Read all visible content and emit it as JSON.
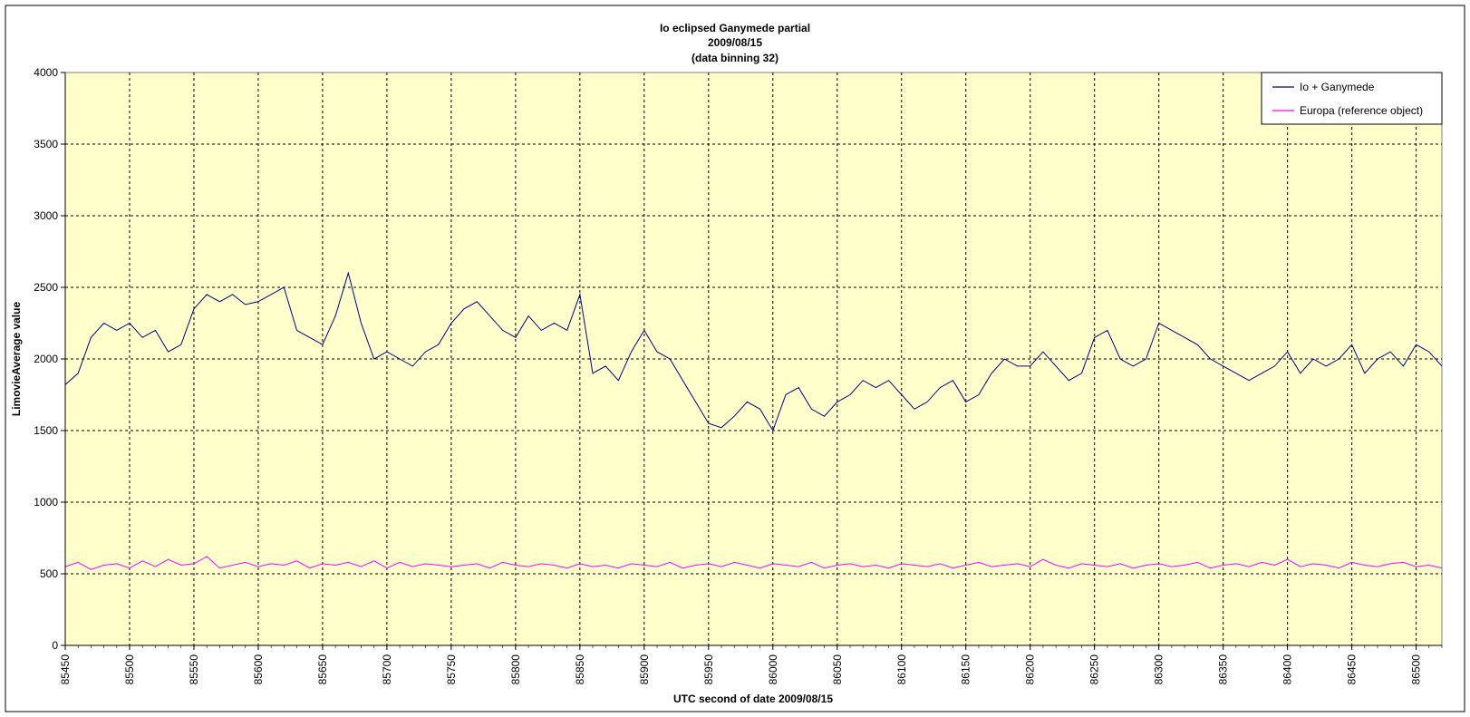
{
  "chart_data": {
    "type": "line",
    "title": [
      "Io eclipsed Ganymede partial",
      "2009/08/15",
      "(data binning 32)"
    ],
    "xlabel": "UTC second  of date 2009/08/15",
    "ylabel": "LimovieAverage value",
    "xlim": [
      85450,
      86520
    ],
    "ylim": [
      0,
      4000
    ],
    "x_ticks": [
      85450,
      85500,
      85550,
      85600,
      85650,
      85700,
      85750,
      85800,
      85850,
      85900,
      85950,
      86000,
      86050,
      86100,
      86150,
      86200,
      86250,
      86300,
      86350,
      86400,
      86450,
      86500
    ],
    "y_ticks": [
      0,
      500,
      1000,
      1500,
      2000,
      2500,
      3000,
      3500,
      4000
    ],
    "x_tick_labels": [
      "85450",
      "85500",
      "85550",
      "85600",
      "85650",
      "85700",
      "85750",
      "85800",
      "85850",
      "85900",
      "85950",
      "86000",
      "86050",
      "86100",
      "86150",
      "86200",
      "86250",
      "86300",
      "86350",
      "86400",
      "86450",
      "86500"
    ],
    "y_tick_labels": [
      "0",
      "500",
      "1000",
      "1500",
      "2000",
      "2500",
      "3000",
      "3500",
      "4000"
    ],
    "grid": true,
    "legend_position": "top-right",
    "background_color": "#FFFFCC",
    "series": [
      {
        "name": "Io + Ganymede",
        "color": "#000080",
        "x": [
          85450,
          85460,
          85470,
          85480,
          85490,
          85500,
          85510,
          85520,
          85530,
          85540,
          85550,
          85560,
          85570,
          85580,
          85590,
          85600,
          85610,
          85620,
          85630,
          85640,
          85650,
          85660,
          85670,
          85680,
          85690,
          85700,
          85710,
          85720,
          85730,
          85740,
          85750,
          85760,
          85770,
          85780,
          85790,
          85800,
          85810,
          85820,
          85830,
          85840,
          85850,
          85860,
          85870,
          85880,
          85890,
          85900,
          85910,
          85920,
          85930,
          85940,
          85950,
          85960,
          85970,
          85980,
          85990,
          86000,
          86010,
          86020,
          86030,
          86040,
          86050,
          86060,
          86070,
          86080,
          86090,
          86100,
          86110,
          86120,
          86130,
          86140,
          86150,
          86160,
          86170,
          86180,
          86190,
          86200,
          86210,
          86220,
          86230,
          86240,
          86250,
          86260,
          86270,
          86280,
          86290,
          86300,
          86310,
          86320,
          86330,
          86340,
          86350,
          86360,
          86370,
          86380,
          86390,
          86400,
          86410,
          86420,
          86430,
          86440,
          86450,
          86460,
          86470,
          86480,
          86490,
          86500,
          86510,
          86520
        ],
        "y": [
          1820,
          1900,
          2150,
          2250,
          2200,
          2250,
          2150,
          2200,
          2050,
          2100,
          2350,
          2450,
          2400,
          2450,
          2380,
          2400,
          2450,
          2500,
          2200,
          2150,
          2100,
          2300,
          2600,
          2250,
          2000,
          2050,
          2000,
          1950,
          2050,
          2100,
          2250,
          2350,
          2400,
          2300,
          2200,
          2150,
          2300,
          2200,
          2250,
          2200,
          2450,
          1900,
          1950,
          1850,
          2050,
          2200,
          2050,
          2000,
          1850,
          1700,
          1550,
          1520,
          1600,
          1700,
          1650,
          1500,
          1750,
          1800,
          1650,
          1600,
          1700,
          1750,
          1850,
          1800,
          1850,
          1750,
          1650,
          1700,
          1800,
          1850,
          1700,
          1750,
          1900,
          2000,
          1950,
          1950,
          2050,
          1950,
          1850,
          1900,
          2150,
          2200,
          2000,
          1950,
          2000,
          2250,
          2200,
          2150,
          2100,
          2000,
          1950,
          1900,
          1850,
          1900,
          1950,
          2050,
          1900,
          2000,
          1950,
          2000,
          2100,
          1900,
          2000,
          2050,
          1950,
          2100,
          2050,
          1950
        ]
      },
      {
        "name": "Europa (reference object)",
        "color": "#FF00FF",
        "x": [
          85450,
          85460,
          85470,
          85480,
          85490,
          85500,
          85510,
          85520,
          85530,
          85540,
          85550,
          85560,
          85570,
          85580,
          85590,
          85600,
          85610,
          85620,
          85630,
          85640,
          85650,
          85660,
          85670,
          85680,
          85690,
          85700,
          85710,
          85720,
          85730,
          85740,
          85750,
          85760,
          85770,
          85780,
          85790,
          85800,
          85810,
          85820,
          85830,
          85840,
          85850,
          85860,
          85870,
          85880,
          85890,
          85900,
          85910,
          85920,
          85930,
          85940,
          85950,
          85960,
          85970,
          85980,
          85990,
          86000,
          86010,
          86020,
          86030,
          86040,
          86050,
          86060,
          86070,
          86080,
          86090,
          86100,
          86110,
          86120,
          86130,
          86140,
          86150,
          86160,
          86170,
          86180,
          86190,
          86200,
          86210,
          86220,
          86230,
          86240,
          86250,
          86260,
          86270,
          86280,
          86290,
          86300,
          86310,
          86320,
          86330,
          86340,
          86350,
          86360,
          86370,
          86380,
          86390,
          86400,
          86410,
          86420,
          86430,
          86440,
          86450,
          86460,
          86470,
          86480,
          86490,
          86500,
          86510,
          86520
        ],
        "y": [
          550,
          580,
          530,
          560,
          570,
          540,
          590,
          550,
          600,
          560,
          570,
          620,
          540,
          560,
          580,
          550,
          570,
          560,
          590,
          540,
          570,
          560,
          580,
          550,
          590,
          540,
          580,
          550,
          570,
          560,
          550,
          560,
          570,
          540,
          580,
          560,
          550,
          570,
          560,
          540,
          570,
          550,
          560,
          540,
          570,
          560,
          550,
          580,
          540,
          560,
          570,
          550,
          580,
          560,
          540,
          570,
          560,
          550,
          580,
          540,
          560,
          570,
          550,
          560,
          540,
          570,
          560,
          550,
          570,
          540,
          560,
          580,
          550,
          560,
          570,
          550,
          600,
          560,
          540,
          570,
          560,
          550,
          570,
          540,
          560,
          570,
          550,
          560,
          580,
          540,
          560,
          570,
          550,
          580,
          560,
          600,
          550,
          570,
          560,
          540,
          580,
          560,
          550,
          570,
          580,
          550,
          560,
          540
        ]
      }
    ]
  }
}
